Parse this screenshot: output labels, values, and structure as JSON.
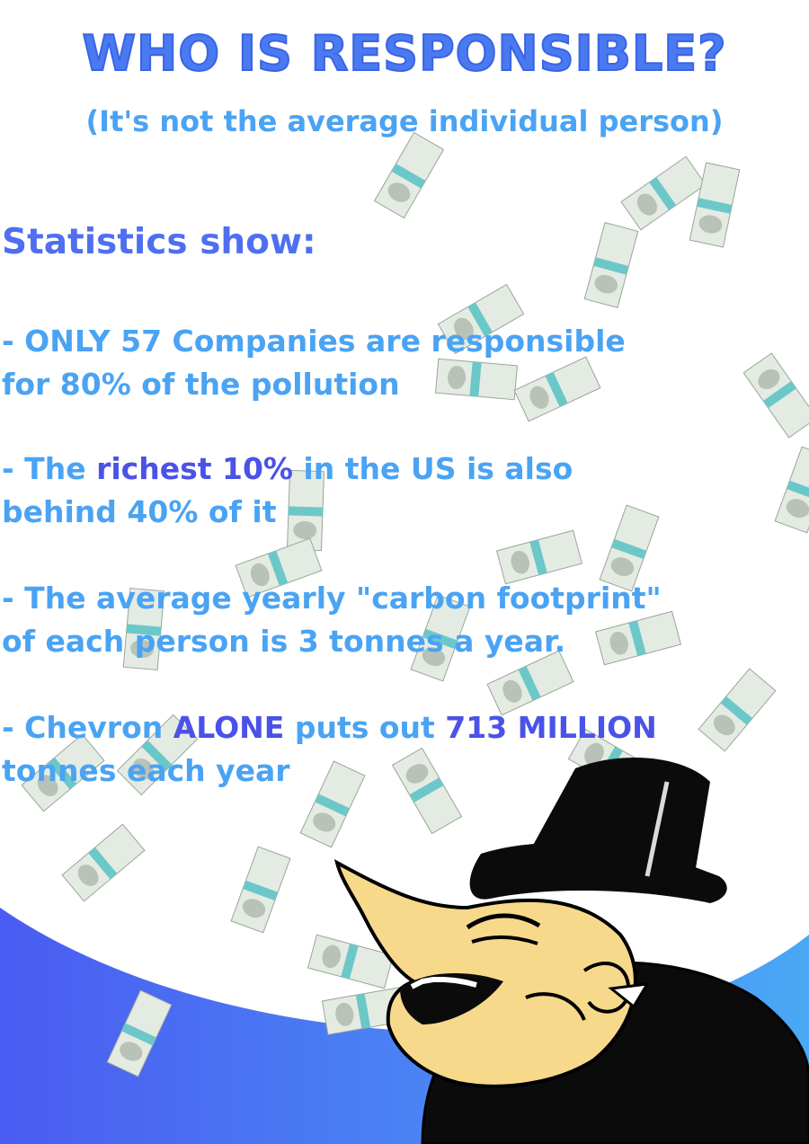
{
  "colors": {
    "title": "#4a7af0",
    "text_light": "#4aa3f3",
    "text_strong": "#4a52e8",
    "heading": "#4f6ff0",
    "arc_left": "#4a5cf2",
    "arc_right": "#4aa8f5",
    "bill": "#e4ebe3",
    "bill_band": "#6cc8c8",
    "skin": "#f7d98c",
    "hat": "#0b0b0b"
  },
  "title": "WHO IS RESPONSIBLE?",
  "subtitle": "(It's not the average individual person)",
  "heading": "Statistics show:",
  "stats": [
    {
      "line1": [
        {
          "text": "- ONLY 57 Companies are responsible",
          "strong": false
        }
      ],
      "line2": [
        {
          "text": "for 80% of the pollution",
          "strong": false
        }
      ]
    },
    {
      "line1": [
        {
          "text": "- The ",
          "strong": false
        },
        {
          "text": "richest 10%",
          "strong": true
        },
        {
          "text": " in the US is also",
          "strong": false
        }
      ],
      "line2": [
        {
          "text": "behind 40% of it",
          "strong": false
        }
      ]
    },
    {
      "line1": [
        {
          "text": "- The average yearly \"carbon footprint\"",
          "strong": false
        }
      ],
      "line2": [
        {
          "text": "of each person is 3 tonnes a year.",
          "strong": false
        }
      ]
    },
    {
      "line1": [
        {
          "text": "- Chevron ",
          "strong": false
        },
        {
          "text": "ALONE",
          "strong": true
        },
        {
          "text": " puts out ",
          "strong": false
        },
        {
          "text": "713 MILLION",
          "strong": true
        }
      ],
      "line2": [
        {
          "text": "tonnes each year",
          "strong": false
        }
      ]
    }
  ],
  "illustration": {
    "figure": "laughing-tycoon-in-top-hat",
    "props": "falling-dollar-bills"
  }
}
